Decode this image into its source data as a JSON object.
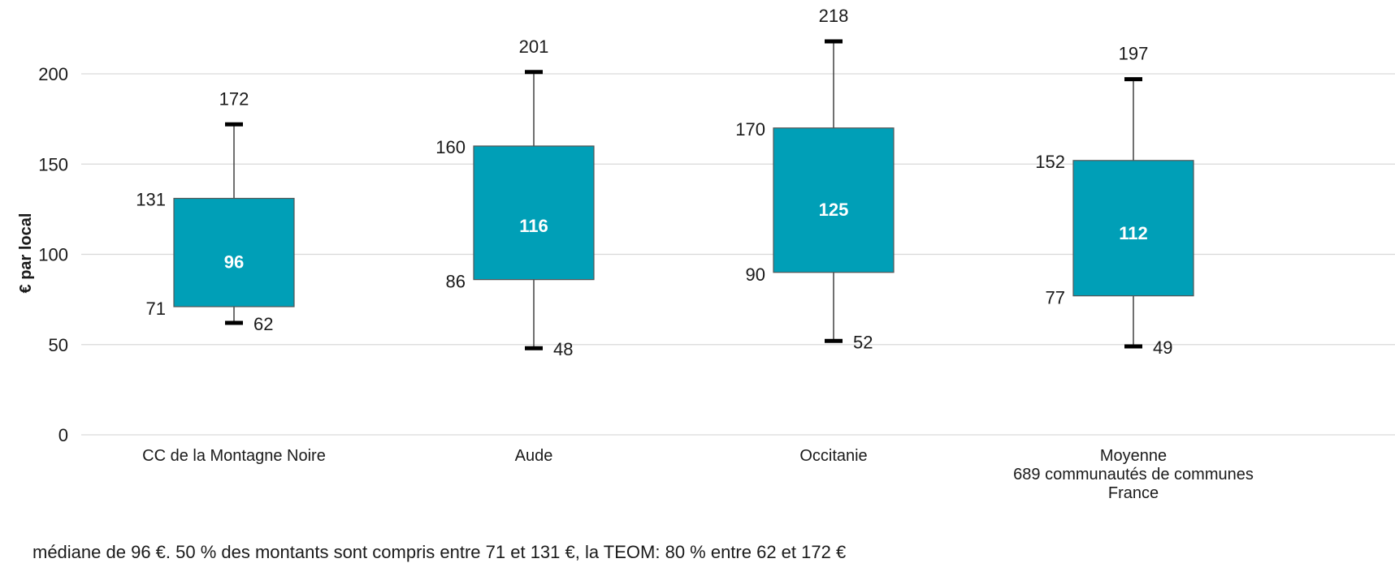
{
  "chart_data": {
    "type": "boxplot",
    "title": "",
    "ylabel": "€ par local",
    "xlabel": "",
    "ylim": [
      0,
      200
    ],
    "yticks": [
      0,
      50,
      100,
      150,
      200
    ],
    "grid": "horizontal",
    "categories": [
      "CC de la Montagne Noire",
      "Aude",
      "Occitanie",
      "Moyenne\n689 communautés de communes\nFrance"
    ],
    "boxes": [
      {
        "min": 62,
        "q1": 71,
        "median": 96,
        "q3": 131,
        "max": 172
      },
      {
        "min": 48,
        "q1": 86,
        "median": 116,
        "q3": 160,
        "max": 201
      },
      {
        "min": 52,
        "q1": 90,
        "median": 125,
        "q3": 170,
        "max": 218
      },
      {
        "min": 49,
        "q1": 77,
        "median": 112,
        "q3": 152,
        "max": 197
      }
    ],
    "box_color": "#009fb7",
    "grid_color": "#d9d9d9"
  },
  "footnote": "médiane de 96 €. 50 % des montants sont compris entre 71 et 131 €, la TEOM: 80 % entre 62 et 172 €"
}
